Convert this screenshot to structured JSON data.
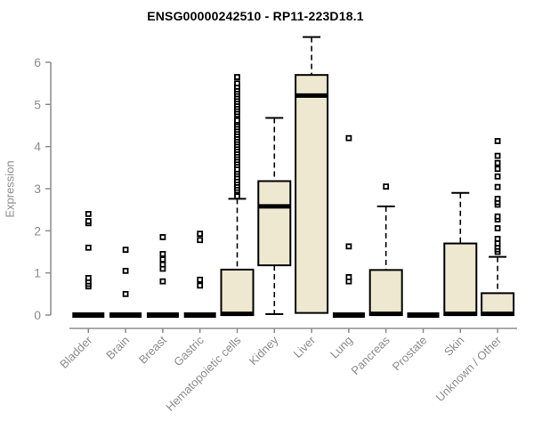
{
  "chart_data": {
    "type": "boxplot",
    "title": "ENSG00000242510 - RP11-223D18.1",
    "xlabel": "",
    "ylabel": "Expression",
    "ylim": [
      0,
      6.6
    ],
    "yticks": [
      0,
      1,
      2,
      3,
      4,
      5,
      6
    ],
    "grid": false,
    "legend": "none",
    "colors": {
      "box_fill": "#EDE8CF",
      "box_stroke": "#000000",
      "median": "#000000",
      "outlier": "#000000",
      "axis": "#8C8C8C",
      "tick_label": "#8C8C8C",
      "title": "#000000",
      "background": "#FFFFFF"
    },
    "categories": [
      "Bladder",
      "Brain",
      "Breast",
      "Gastric",
      "Hematopoietic cells",
      "Kidney",
      "Liver",
      "Lung",
      "Pancreas",
      "Prostate",
      "Skin",
      "Unknown / Other"
    ],
    "boxes": [
      {
        "label": "Bladder",
        "collapsed": true,
        "whisker_low": 0,
        "q1": 0,
        "median": 0,
        "q3": 0,
        "whisker_high": 0,
        "outliers": [
          0.68,
          0.74,
          0.8,
          0.88,
          1.6,
          2.18,
          2.23,
          2.4
        ]
      },
      {
        "label": "Brain",
        "collapsed": true,
        "whisker_low": 0,
        "q1": 0,
        "median": 0,
        "q3": 0,
        "whisker_high": 0,
        "outliers": [
          0.5,
          1.05,
          1.55
        ]
      },
      {
        "label": "Breast",
        "collapsed": true,
        "whisker_low": 0,
        "q1": 0,
        "median": 0,
        "q3": 0,
        "whisker_high": 0,
        "outliers": [
          0.8,
          1.1,
          1.2,
          1.32,
          1.45,
          1.85
        ]
      },
      {
        "label": "Gastric",
        "collapsed": true,
        "whisker_low": 0,
        "q1": 0,
        "median": 0,
        "q3": 0,
        "whisker_high": 0,
        "outliers": [
          0.7,
          0.84,
          1.78,
          1.93
        ]
      },
      {
        "label": "Hematopoietic cells",
        "collapsed": false,
        "whisker_low": 0,
        "q1": 0,
        "median": 0.03,
        "q3": 1.08,
        "whisker_high": 2.76,
        "outliers": [
          2.82,
          2.96,
          3.02,
          3.08,
          3.14,
          3.2,
          3.27,
          3.34,
          3.4,
          3.46,
          3.56,
          3.62,
          3.68,
          3.74,
          3.8,
          3.86,
          3.92,
          3.98,
          4.04,
          4.1,
          4.16,
          4.22,
          4.28,
          4.34,
          4.4,
          4.46,
          4.52,
          4.58,
          4.62,
          4.76,
          4.82,
          4.88,
          4.94,
          5.0,
          5.06,
          5.12,
          5.18,
          5.24,
          5.3,
          5.36,
          5.42,
          5.5,
          5.65
        ]
      },
      {
        "label": "Kidney",
        "collapsed": false,
        "whisker_low": 0.02,
        "q1": 1.18,
        "median": 2.58,
        "q3": 3.18,
        "whisker_high": 4.68,
        "outliers": []
      },
      {
        "label": "Liver",
        "collapsed": false,
        "whisker_low": 0.05,
        "q1": 0.05,
        "median": 5.21,
        "q3": 5.7,
        "whisker_high": 6.6,
        "outliers": []
      },
      {
        "label": "Lung",
        "collapsed": true,
        "whisker_low": 0,
        "q1": 0,
        "median": 0,
        "q3": 0,
        "whisker_high": 0,
        "outliers": [
          0.8,
          0.9,
          1.63,
          4.2
        ]
      },
      {
        "label": "Pancreas",
        "collapsed": false,
        "whisker_low": 0,
        "q1": 0,
        "median": 0.03,
        "q3": 1.07,
        "whisker_high": 2.58,
        "outliers": [
          3.05
        ]
      },
      {
        "label": "Prostate",
        "collapsed": true,
        "whisker_low": 0,
        "q1": 0,
        "median": 0,
        "q3": 0,
        "whisker_high": 0,
        "outliers": []
      },
      {
        "label": "Skin",
        "collapsed": false,
        "whisker_low": 0,
        "q1": 0,
        "median": 0.03,
        "q3": 1.7,
        "whisker_high": 2.9,
        "outliers": []
      },
      {
        "label": "Unknown / Other",
        "collapsed": false,
        "whisker_low": 0,
        "q1": 0,
        "median": 0.03,
        "q3": 0.52,
        "whisker_high": 1.38,
        "outliers": [
          1.5,
          1.56,
          1.62,
          1.7,
          1.81,
          2.06,
          2.27,
          2.34,
          2.62,
          2.68,
          2.76,
          3.04,
          3.29,
          3.47,
          3.61,
          3.78,
          4.13
        ]
      }
    ]
  }
}
